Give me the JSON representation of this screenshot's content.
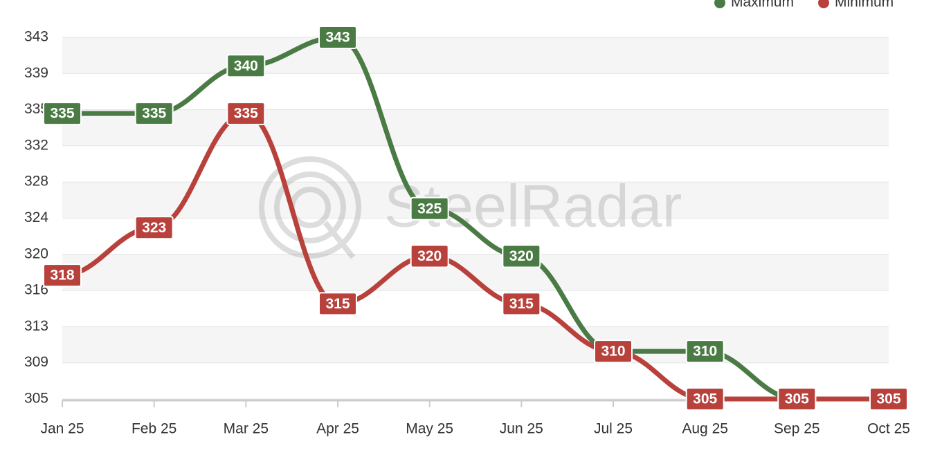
{
  "chart_data": {
    "type": "line",
    "watermark": "SteelRadar",
    "categories": [
      "Jan 25",
      "Feb 25",
      "Mar 25",
      "Apr 25",
      "May 25",
      "Jun 25",
      "Jul 25",
      "Aug 25",
      "Sep 25",
      "Oct 25"
    ],
    "series": [
      {
        "name": "Maximum",
        "color": "#4b7b45",
        "values": [
          335,
          335,
          340,
          343,
          325,
          320,
          310,
          310,
          305,
          305
        ]
      },
      {
        "name": "Minimum",
        "color": "#b8413c",
        "values": [
          318,
          323,
          335,
          315,
          320,
          315,
          310,
          305,
          305,
          305
        ]
      }
    ],
    "ylim": [
      305,
      343
    ],
    "yticks": [
      305,
      {
        "value": 308.8,
        "label": "309"
      },
      {
        "value": 312.6,
        "label": "313"
      },
      {
        "value": 316.4,
        "label": "316"
      },
      {
        "value": 320.2,
        "label": "320"
      },
      324,
      {
        "value": 327.8,
        "label": "328"
      },
      {
        "value": 331.6,
        "label": "332"
      },
      {
        "value": 335.4,
        "label": "335"
      },
      {
        "value": 339.2,
        "label": "339"
      },
      343
    ],
    "grid": true,
    "legend": "top-right"
  }
}
